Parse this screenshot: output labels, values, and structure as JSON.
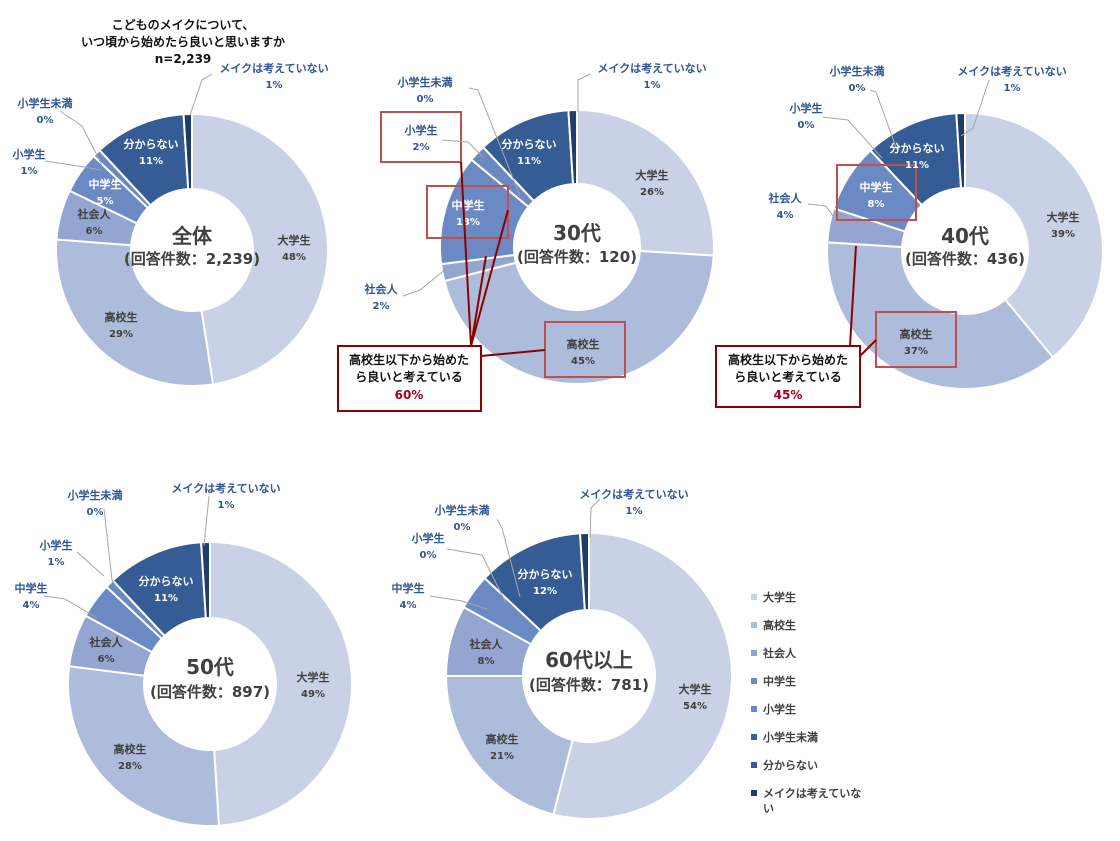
{
  "title": {
    "line1": "こどものメイクについて、",
    "line2": "いつ頃から始めたら良いと思いますか",
    "line3": "n=2,239"
  },
  "colors": {
    "categories": [
      "#c9d1e6",
      "#aebcdb",
      "#93a5d0",
      "#6b8ac3",
      "#6a88c2",
      "#3d5f98",
      "#355c95",
      "#1f3d6a"
    ],
    "label_dark": "#404040",
    "label_light": "#ffffff",
    "label_outside": "#2f5597",
    "highlight": "#c0504d",
    "callout_line": "#8b0000",
    "callout_pct": "#a50021"
  },
  "legend": {
    "items": [
      "大学生",
      "高校生",
      "社会人",
      "中学生",
      "小学生",
      "小学生未満",
      "分からない",
      "メイクは考えていない"
    ]
  },
  "chart_data": [
    {
      "type": "pie",
      "center_line1": "全体",
      "center_line2": "(回答件数：2,239)",
      "categories": [
        "大学生",
        "高校生",
        "社会人",
        "中学生",
        "小学生",
        "小学生未満",
        "分からない",
        "メイクは考えていない"
      ],
      "values": [
        48,
        29,
        6,
        5,
        1,
        0,
        11,
        1
      ],
      "value_labels": [
        "48%",
        "29%",
        "6%",
        "5%",
        "1%",
        "0%",
        "11%",
        "1%"
      ]
    },
    {
      "type": "pie",
      "center_line1": "30代",
      "center_line2": "(回答件数：120)",
      "categories": [
        "大学生",
        "高校生",
        "社会人",
        "中学生",
        "小学生",
        "小学生未満",
        "分からない",
        "メイクは考えていない"
      ],
      "values": [
        26,
        45,
        2,
        13,
        2,
        0,
        11,
        1
      ],
      "value_labels": [
        "26%",
        "45%",
        "2%",
        "13%",
        "2%",
        "0%",
        "11%",
        "1%"
      ],
      "callout": {
        "line1": "高校生以下から始めた",
        "line2": "ら良いと考えている",
        "pct": "60%"
      }
    },
    {
      "type": "pie",
      "center_line1": "40代",
      "center_line2": "(回答件数：436)",
      "categories": [
        "大学生",
        "高校生",
        "社会人",
        "中学生",
        "小学生",
        "小学生未満",
        "分からない",
        "メイクは考えていない"
      ],
      "values": [
        39,
        37,
        4,
        8,
        0,
        0,
        11,
        1
      ],
      "value_labels": [
        "39%",
        "37%",
        "4%",
        "8%",
        "0%",
        "0%",
        "11%",
        "1%"
      ],
      "callout": {
        "line1": "高校生以下から始めた",
        "line2": "ら良いと考えている",
        "pct": "45%"
      }
    },
    {
      "type": "pie",
      "center_line1": "50代",
      "center_line2": "(回答件数：897)",
      "categories": [
        "大学生",
        "高校生",
        "社会人",
        "中学生",
        "小学生",
        "小学生未満",
        "分からない",
        "メイクは考えていない"
      ],
      "values": [
        49,
        28,
        6,
        4,
        1,
        0,
        11,
        1
      ],
      "value_labels": [
        "49%",
        "28%",
        "6%",
        "4%",
        "1%",
        "0%",
        "11%",
        "1%"
      ]
    },
    {
      "type": "pie",
      "center_line1": "60代以上",
      "center_line2": "(回答件数：781)",
      "categories": [
        "大学生",
        "高校生",
        "社会人",
        "中学生",
        "小学生",
        "小学生未満",
        "分からない",
        "メイクは考えていない"
      ],
      "values": [
        54,
        21,
        8,
        4,
        0,
        0,
        12,
        1
      ],
      "value_labels": [
        "54%",
        "21%",
        "8%",
        "4%",
        "0%",
        "0%",
        "12%",
        "1%"
      ]
    }
  ]
}
